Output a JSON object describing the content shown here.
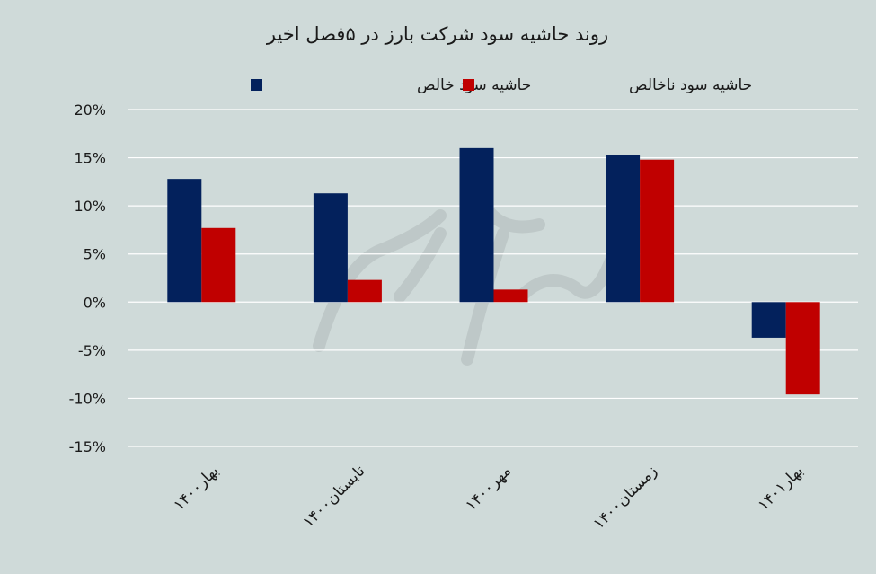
{
  "chart_data": {
    "type": "bar",
    "title": "روند حاشیه سود شرکت بارز در ۵فصل اخیر",
    "categories": [
      "بهار۱۴۰۰",
      "تابستان۱۴۰۰",
      "مهر۱۴۰۰",
      "زمستان۱۴۰۰",
      "بهار۱۴۰۱"
    ],
    "series": [
      {
        "name": "حاشیه سود خالص",
        "color": "#03215c",
        "values": [
          12.8,
          11.3,
          16.0,
          15.3,
          -3.7
        ]
      },
      {
        "name": "حاشیه سود ناخالص",
        "color": "#c00000",
        "values": [
          7.7,
          2.3,
          1.3,
          14.8,
          -9.6
        ]
      }
    ],
    "yticks": [
      "20%",
      "15%",
      "10%",
      "5%",
      "0%",
      "-5%",
      "-10%",
      "-15%"
    ],
    "ylim": [
      -15,
      20
    ],
    "grid": true,
    "legend_position": "top-center",
    "background_color": "#cfdad9",
    "grid_color": "#ffffff"
  }
}
